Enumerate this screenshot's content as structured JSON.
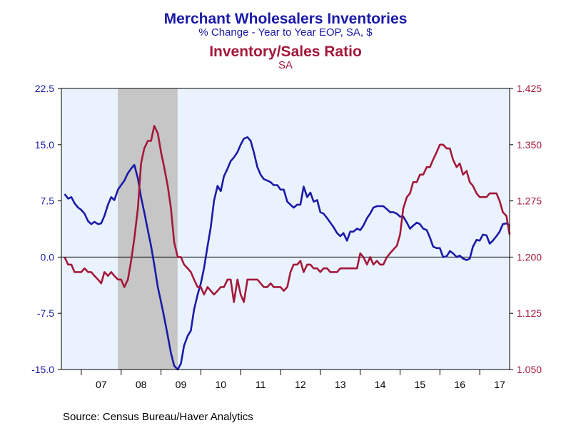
{
  "titles": {
    "line1": "Merchant Wholesalers Inventories",
    "line2": "% Change - Year to Year    EOP, SA, $",
    "line3": "Inventory/Sales Ratio",
    "line4": "SA"
  },
  "source": "Source:  Census Bureau/Haver Analytics",
  "chart_data": {
    "type": "line",
    "x_unit": "year (decimal)",
    "xlim": [
      2006.5,
      2017.75
    ],
    "x_tick_labels": [
      "07",
      "08",
      "09",
      "10",
      "11",
      "12",
      "13",
      "14",
      "15",
      "16",
      "17"
    ],
    "recession_shading": [
      2007.917,
      2009.417
    ],
    "zero_line": 0,
    "left_axis": {
      "ylim": [
        -15.0,
        22.5
      ],
      "ticks": [
        "22.5",
        "15.0",
        "7.5",
        "0.0",
        "-7.5",
        "-15.0"
      ],
      "color": "#1a1aa8"
    },
    "right_axis": {
      "ylim": [
        1.05,
        1.425
      ],
      "ticks": [
        "1.425",
        "1.350",
        "1.275",
        "1.200",
        "1.125",
        "1.050"
      ],
      "color": "#a4183a"
    },
    "series": [
      {
        "name": "Merchant Wholesalers Inventories",
        "axis": "left",
        "color": "#1a1aa8",
        "points": [
          [
            2006.58,
            8.4
          ],
          [
            2006.67,
            7.8
          ],
          [
            2006.75,
            8.0
          ],
          [
            2006.83,
            7.2
          ],
          [
            2006.92,
            6.6
          ],
          [
            2007.0,
            6.3
          ],
          [
            2007.08,
            5.8
          ],
          [
            2007.17,
            4.8
          ],
          [
            2007.25,
            4.4
          ],
          [
            2007.33,
            4.7
          ],
          [
            2007.42,
            4.4
          ],
          [
            2007.5,
            4.5
          ],
          [
            2007.58,
            5.5
          ],
          [
            2007.67,
            7.0
          ],
          [
            2007.75,
            8.0
          ],
          [
            2007.83,
            7.6
          ],
          [
            2007.92,
            9.0
          ],
          [
            2008.0,
            9.6
          ],
          [
            2008.08,
            10.2
          ],
          [
            2008.17,
            11.2
          ],
          [
            2008.25,
            11.8
          ],
          [
            2008.33,
            12.3
          ],
          [
            2008.42,
            10.5
          ],
          [
            2008.5,
            8.0
          ],
          [
            2008.58,
            6.0
          ],
          [
            2008.67,
            3.6
          ],
          [
            2008.75,
            1.5
          ],
          [
            2008.83,
            -1.0
          ],
          [
            2008.92,
            -4.0
          ],
          [
            2009.0,
            -6.0
          ],
          [
            2009.08,
            -8.0
          ],
          [
            2009.17,
            -10.5
          ],
          [
            2009.25,
            -12.8
          ],
          [
            2009.33,
            -14.5
          ],
          [
            2009.42,
            -15.0
          ],
          [
            2009.5,
            -14.2
          ],
          [
            2009.58,
            -11.8
          ],
          [
            2009.67,
            -10.5
          ],
          [
            2009.75,
            -9.8
          ],
          [
            2009.83,
            -7.0
          ],
          [
            2009.92,
            -5.0
          ],
          [
            2010.0,
            -3.5
          ],
          [
            2010.08,
            -1.5
          ],
          [
            2010.17,
            1.5
          ],
          [
            2010.25,
            4.0
          ],
          [
            2010.33,
            7.5
          ],
          [
            2010.42,
            9.5
          ],
          [
            2010.5,
            8.8
          ],
          [
            2010.58,
            10.8
          ],
          [
            2010.67,
            11.8
          ],
          [
            2010.75,
            12.8
          ],
          [
            2010.83,
            13.3
          ],
          [
            2010.92,
            14.0
          ],
          [
            2011.0,
            15.0
          ],
          [
            2011.08,
            15.8
          ],
          [
            2011.17,
            16.0
          ],
          [
            2011.25,
            15.5
          ],
          [
            2011.33,
            14.0
          ],
          [
            2011.42,
            12.0
          ],
          [
            2011.5,
            11.0
          ],
          [
            2011.58,
            10.4
          ],
          [
            2011.67,
            10.2
          ],
          [
            2011.75,
            10.0
          ],
          [
            2011.83,
            9.6
          ],
          [
            2011.92,
            9.6
          ],
          [
            2012.0,
            9.0
          ],
          [
            2012.08,
            9.0
          ],
          [
            2012.17,
            7.4
          ],
          [
            2012.25,
            7.0
          ],
          [
            2012.33,
            6.6
          ],
          [
            2012.42,
            7.0
          ],
          [
            2012.5,
            7.0
          ],
          [
            2012.58,
            9.4
          ],
          [
            2012.67,
            8.0
          ],
          [
            2012.75,
            8.6
          ],
          [
            2012.83,
            7.4
          ],
          [
            2012.92,
            7.6
          ],
          [
            2013.0,
            6.0
          ],
          [
            2013.08,
            5.8
          ],
          [
            2013.17,
            5.2
          ],
          [
            2013.25,
            4.6
          ],
          [
            2013.33,
            4.0
          ],
          [
            2013.42,
            3.2
          ],
          [
            2013.5,
            2.8
          ],
          [
            2013.58,
            3.2
          ],
          [
            2013.67,
            2.2
          ],
          [
            2013.75,
            3.4
          ],
          [
            2013.83,
            3.4
          ],
          [
            2013.92,
            3.8
          ],
          [
            2014.0,
            3.6
          ],
          [
            2014.08,
            4.2
          ],
          [
            2014.17,
            5.2
          ],
          [
            2014.25,
            5.8
          ],
          [
            2014.33,
            6.6
          ],
          [
            2014.42,
            6.8
          ],
          [
            2014.5,
            6.8
          ],
          [
            2014.58,
            6.8
          ],
          [
            2014.67,
            6.4
          ],
          [
            2014.75,
            6.0
          ],
          [
            2014.83,
            6.0
          ],
          [
            2014.92,
            5.8
          ],
          [
            2015.0,
            5.4
          ],
          [
            2015.08,
            5.4
          ],
          [
            2015.17,
            4.6
          ],
          [
            2015.25,
            3.8
          ],
          [
            2015.33,
            4.2
          ],
          [
            2015.42,
            4.6
          ],
          [
            2015.5,
            4.4
          ],
          [
            2015.58,
            3.8
          ],
          [
            2015.67,
            3.6
          ],
          [
            2015.75,
            2.6
          ],
          [
            2015.83,
            1.4
          ],
          [
            2015.92,
            1.2
          ],
          [
            2016.0,
            1.2
          ],
          [
            2016.08,
            0.0
          ],
          [
            2016.17,
            0.1
          ],
          [
            2016.25,
            0.8
          ],
          [
            2016.33,
            0.5
          ],
          [
            2016.42,
            0.0
          ],
          [
            2016.5,
            0.2
          ],
          [
            2016.58,
            -0.2
          ],
          [
            2016.67,
            -0.4
          ],
          [
            2016.75,
            -0.2
          ],
          [
            2016.83,
            1.4
          ],
          [
            2016.92,
            2.3
          ],
          [
            2017.0,
            2.2
          ],
          [
            2017.08,
            3.0
          ],
          [
            2017.17,
            2.9
          ],
          [
            2017.25,
            1.8
          ],
          [
            2017.33,
            2.2
          ],
          [
            2017.42,
            2.8
          ],
          [
            2017.5,
            3.4
          ],
          [
            2017.58,
            4.4
          ],
          [
            2017.67,
            4.5
          ],
          [
            2017.75,
            4.2
          ]
        ]
      },
      {
        "name": "Inventory/Sales Ratio",
        "axis": "right",
        "color": "#a4183a",
        "points": [
          [
            2006.58,
            1.2
          ],
          [
            2006.67,
            1.19
          ],
          [
            2006.75,
            1.19
          ],
          [
            2006.83,
            1.18
          ],
          [
            2006.92,
            1.18
          ],
          [
            2007.0,
            1.18
          ],
          [
            2007.08,
            1.185
          ],
          [
            2007.17,
            1.18
          ],
          [
            2007.25,
            1.18
          ],
          [
            2007.33,
            1.175
          ],
          [
            2007.42,
            1.17
          ],
          [
            2007.5,
            1.165
          ],
          [
            2007.58,
            1.18
          ],
          [
            2007.67,
            1.175
          ],
          [
            2007.75,
            1.18
          ],
          [
            2007.83,
            1.175
          ],
          [
            2007.92,
            1.17
          ],
          [
            2008.0,
            1.17
          ],
          [
            2008.08,
            1.16
          ],
          [
            2008.17,
            1.17
          ],
          [
            2008.25,
            1.195
          ],
          [
            2008.33,
            1.225
          ],
          [
            2008.42,
            1.265
          ],
          [
            2008.5,
            1.325
          ],
          [
            2008.58,
            1.345
          ],
          [
            2008.67,
            1.355
          ],
          [
            2008.75,
            1.355
          ],
          [
            2008.83,
            1.375
          ],
          [
            2008.92,
            1.365
          ],
          [
            2009.0,
            1.34
          ],
          [
            2009.08,
            1.32
          ],
          [
            2009.17,
            1.295
          ],
          [
            2009.25,
            1.265
          ],
          [
            2009.33,
            1.22
          ],
          [
            2009.42,
            1.2
          ],
          [
            2009.5,
            1.2
          ],
          [
            2009.58,
            1.19
          ],
          [
            2009.67,
            1.185
          ],
          [
            2009.75,
            1.18
          ],
          [
            2009.83,
            1.17
          ],
          [
            2009.92,
            1.16
          ],
          [
            2010.0,
            1.16
          ],
          [
            2010.08,
            1.15
          ],
          [
            2010.17,
            1.16
          ],
          [
            2010.25,
            1.155
          ],
          [
            2010.33,
            1.15
          ],
          [
            2010.42,
            1.155
          ],
          [
            2010.5,
            1.16
          ],
          [
            2010.58,
            1.16
          ],
          [
            2010.67,
            1.17
          ],
          [
            2010.75,
            1.17
          ],
          [
            2010.83,
            1.14
          ],
          [
            2010.92,
            1.17
          ],
          [
            2011.0,
            1.15
          ],
          [
            2011.08,
            1.14
          ],
          [
            2011.17,
            1.17
          ],
          [
            2011.25,
            1.17
          ],
          [
            2011.33,
            1.17
          ],
          [
            2011.42,
            1.17
          ],
          [
            2011.5,
            1.165
          ],
          [
            2011.58,
            1.16
          ],
          [
            2011.67,
            1.16
          ],
          [
            2011.75,
            1.165
          ],
          [
            2011.83,
            1.16
          ],
          [
            2011.92,
            1.16
          ],
          [
            2012.0,
            1.16
          ],
          [
            2012.08,
            1.155
          ],
          [
            2012.17,
            1.16
          ],
          [
            2012.25,
            1.18
          ],
          [
            2012.33,
            1.19
          ],
          [
            2012.42,
            1.19
          ],
          [
            2012.5,
            1.195
          ],
          [
            2012.58,
            1.18
          ],
          [
            2012.67,
            1.19
          ],
          [
            2012.75,
            1.19
          ],
          [
            2012.83,
            1.185
          ],
          [
            2012.92,
            1.185
          ],
          [
            2013.0,
            1.18
          ],
          [
            2013.08,
            1.185
          ],
          [
            2013.17,
            1.185
          ],
          [
            2013.25,
            1.18
          ],
          [
            2013.33,
            1.18
          ],
          [
            2013.42,
            1.18
          ],
          [
            2013.5,
            1.185
          ],
          [
            2013.58,
            1.185
          ],
          [
            2013.67,
            1.185
          ],
          [
            2013.75,
            1.185
          ],
          [
            2013.83,
            1.185
          ],
          [
            2013.92,
            1.185
          ],
          [
            2014.0,
            1.205
          ],
          [
            2014.08,
            1.2
          ],
          [
            2014.17,
            1.19
          ],
          [
            2014.25,
            1.2
          ],
          [
            2014.33,
            1.19
          ],
          [
            2014.42,
            1.195
          ],
          [
            2014.5,
            1.19
          ],
          [
            2014.58,
            1.19
          ],
          [
            2014.67,
            1.2
          ],
          [
            2014.75,
            1.205
          ],
          [
            2014.83,
            1.21
          ],
          [
            2014.92,
            1.215
          ],
          [
            2015.0,
            1.23
          ],
          [
            2015.08,
            1.265
          ],
          [
            2015.17,
            1.28
          ],
          [
            2015.25,
            1.285
          ],
          [
            2015.33,
            1.3
          ],
          [
            2015.42,
            1.3
          ],
          [
            2015.5,
            1.31
          ],
          [
            2015.58,
            1.31
          ],
          [
            2015.67,
            1.32
          ],
          [
            2015.75,
            1.32
          ],
          [
            2015.83,
            1.33
          ],
          [
            2015.92,
            1.34
          ],
          [
            2016.0,
            1.35
          ],
          [
            2016.08,
            1.35
          ],
          [
            2016.17,
            1.345
          ],
          [
            2016.25,
            1.345
          ],
          [
            2016.33,
            1.33
          ],
          [
            2016.42,
            1.32
          ],
          [
            2016.5,
            1.325
          ],
          [
            2016.58,
            1.31
          ],
          [
            2016.67,
            1.315
          ],
          [
            2016.75,
            1.3
          ],
          [
            2016.83,
            1.295
          ],
          [
            2016.92,
            1.285
          ],
          [
            2017.0,
            1.28
          ],
          [
            2017.08,
            1.28
          ],
          [
            2017.17,
            1.28
          ],
          [
            2017.25,
            1.285
          ],
          [
            2017.33,
            1.285
          ],
          [
            2017.42,
            1.285
          ],
          [
            2017.5,
            1.275
          ],
          [
            2017.58,
            1.26
          ],
          [
            2017.67,
            1.255
          ],
          [
            2017.75,
            1.23
          ]
        ]
      }
    ]
  }
}
